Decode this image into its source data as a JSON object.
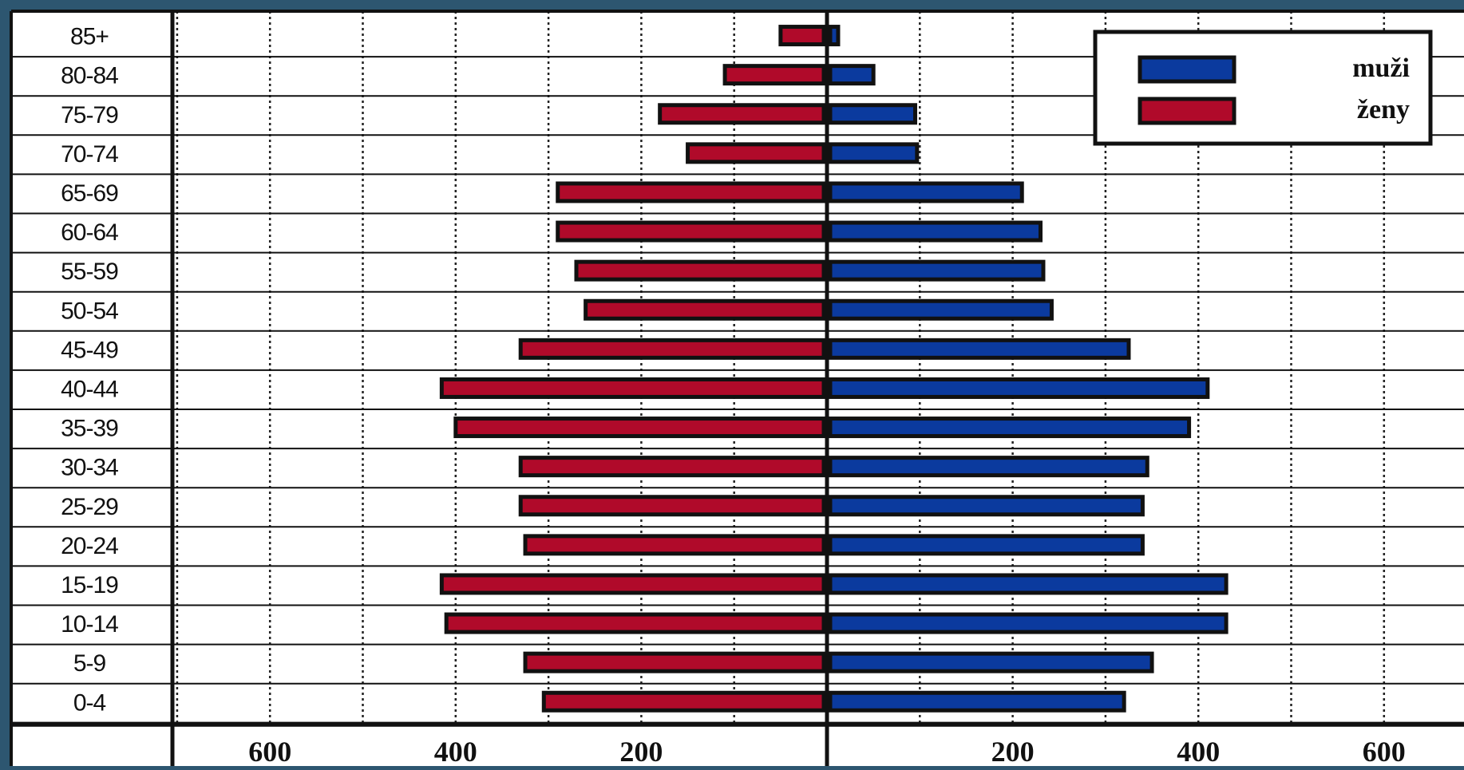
{
  "chart_data": {
    "type": "bar",
    "orientation": "horizontal",
    "subtype": "population-pyramid",
    "categories": [
      "85+",
      "80-84",
      "75-79",
      "70-74",
      "65-69",
      "60-64",
      "55-59",
      "50-54",
      "45-49",
      "40-44",
      "35-39",
      "30-34",
      "25-29",
      "20-24",
      "15-19",
      "10-14",
      "5-9",
      "0-4"
    ],
    "series": [
      {
        "name": "muži",
        "side": "right",
        "color": "#0b3a9e",
        "values": [
          12,
          50,
          95,
          97,
          210,
          230,
          233,
          242,
          325,
          410,
          390,
          345,
          340,
          340,
          430,
          430,
          350,
          320
        ]
      },
      {
        "name": "ženy",
        "side": "left",
        "color": "#b00a2a",
        "values": [
          50,
          110,
          180,
          150,
          290,
          290,
          270,
          260,
          330,
          415,
          400,
          330,
          330,
          325,
          415,
          410,
          325,
          305
        ]
      }
    ],
    "xlim": [
      -700,
      700
    ],
    "xticks": [
      -600,
      -400,
      -200,
      200,
      400,
      600
    ],
    "xtick_labels": [
      "600",
      "400",
      "200",
      "200",
      "400",
      "600"
    ],
    "grid": true,
    "legend_position": "top-right",
    "title": "",
    "xlabel": "",
    "ylabel": ""
  },
  "colors": {
    "background": "#2d5670",
    "plot_background": "#ffffff",
    "male": "#0b3a9e",
    "female": "#b00a2a",
    "outline": "#111111"
  }
}
